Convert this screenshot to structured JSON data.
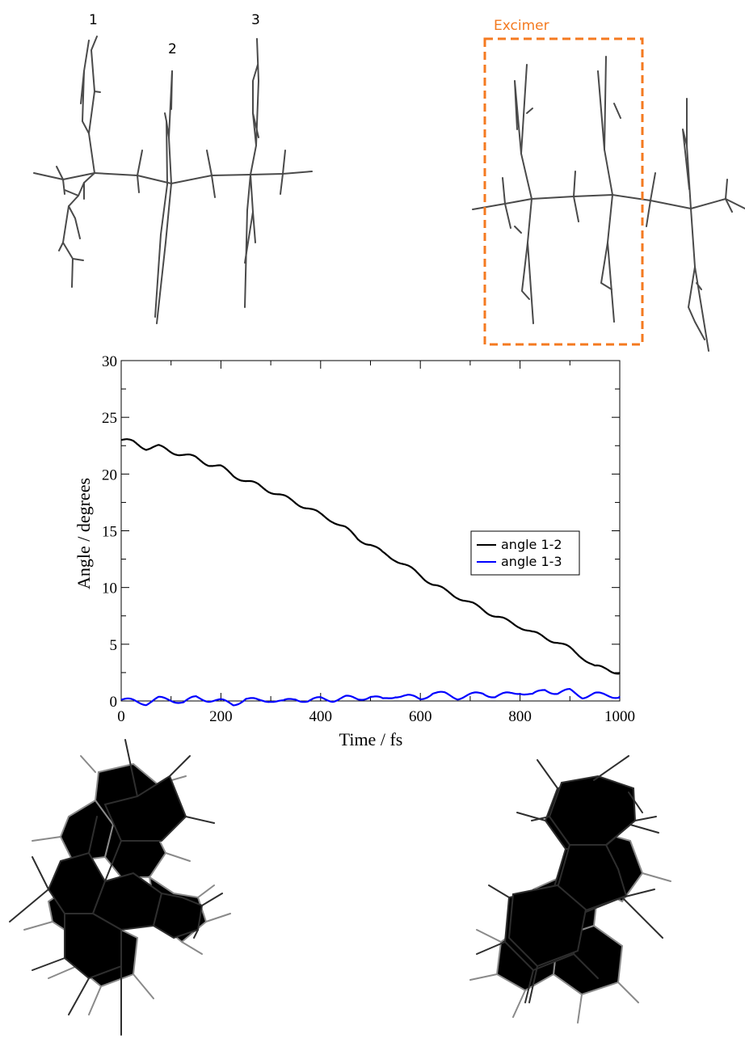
{
  "top_labels": {
    "mol1": "1",
    "mol2": "2",
    "mol3": "3",
    "excimer": "Excimer"
  },
  "colors": {
    "excimer_box": "#f47a20",
    "molecule": "#4a4a4a",
    "series_1_2": "#000000",
    "series_1_3": "#0000ff"
  },
  "chart_data": {
    "type": "line",
    "xlabel": "Time / fs",
    "ylabel": "Angle / degrees",
    "xlim": [
      0,
      1000
    ],
    "ylim": [
      0,
      30
    ],
    "x_ticks": [
      "0",
      "200",
      "400",
      "600",
      "800",
      "1000"
    ],
    "y_ticks": [
      "0",
      "5",
      "10",
      "15",
      "20",
      "25",
      "30"
    ],
    "legend_position": "right",
    "grid": false,
    "x": [
      0,
      25,
      50,
      75,
      100,
      125,
      150,
      175,
      200,
      225,
      250,
      275,
      300,
      325,
      350,
      375,
      400,
      425,
      450,
      475,
      500,
      525,
      550,
      575,
      600,
      625,
      650,
      675,
      700,
      725,
      750,
      775,
      800,
      825,
      850,
      875,
      900,
      925,
      950,
      975,
      1000
    ],
    "series": [
      {
        "name": "angle 1-2",
        "values": [
          23.0,
          22.8,
          22.3,
          22.4,
          22.0,
          21.7,
          21.4,
          20.9,
          20.6,
          19.9,
          19.4,
          19.0,
          18.5,
          18.0,
          17.5,
          17.0,
          16.4,
          15.9,
          15.2,
          14.3,
          13.8,
          13.0,
          12.5,
          11.8,
          11.1,
          10.3,
          9.7,
          9.2,
          8.6,
          8.1,
          7.5,
          7.0,
          6.6,
          6.0,
          5.6,
          5.2,
          4.6,
          3.9,
          3.0,
          2.8,
          2.5
        ]
      },
      {
        "name": "angle 1-3",
        "values": [
          0.1,
          0.0,
          -0.2,
          0.2,
          0.1,
          -0.1,
          0.3,
          0.1,
          0.0,
          -0.3,
          0.2,
          0.0,
          0.1,
          -0.1,
          0.2,
          0.0,
          0.2,
          0.1,
          0.3,
          0.2,
          0.4,
          0.1,
          0.5,
          0.4,
          0.2,
          0.7,
          0.6,
          0.3,
          0.5,
          0.7,
          0.4,
          0.6,
          0.8,
          0.5,
          1.0,
          0.7,
          0.9,
          0.4,
          0.6,
          0.5,
          0.4
        ]
      }
    ]
  }
}
